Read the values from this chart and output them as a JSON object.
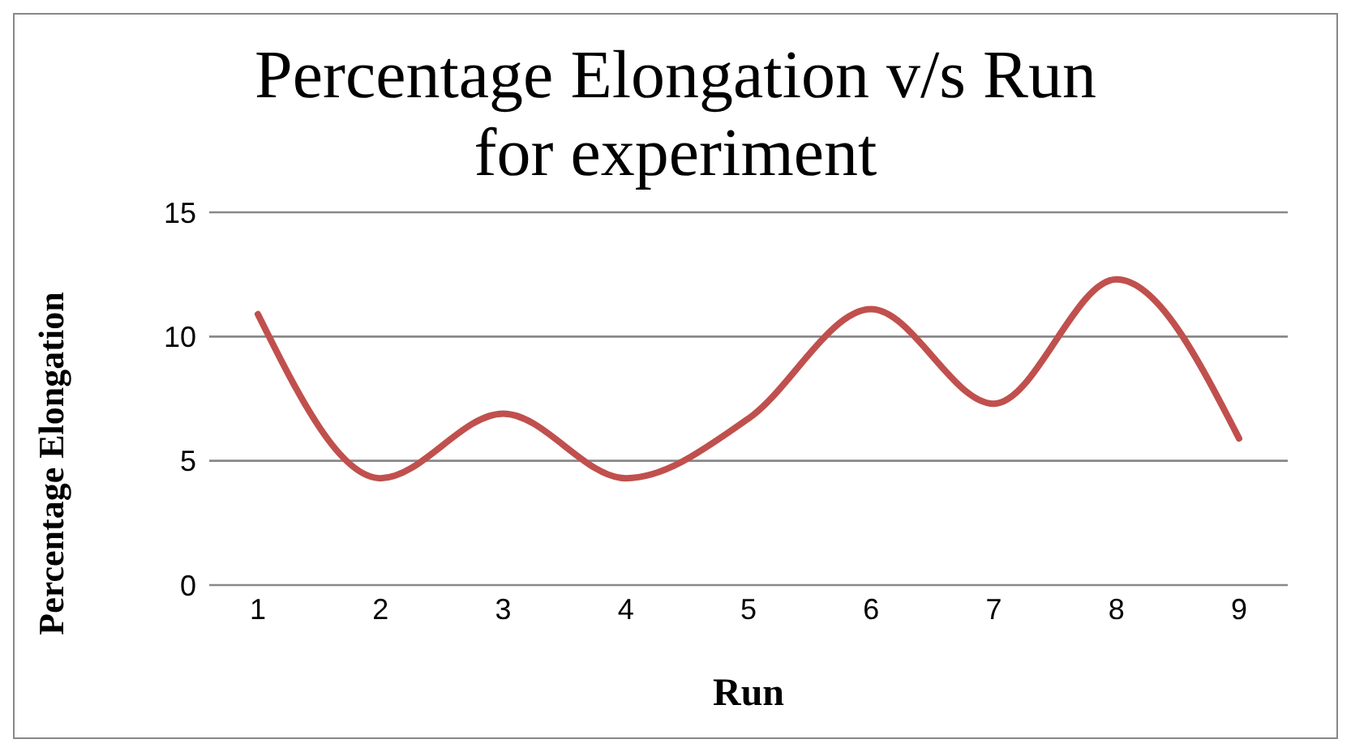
{
  "chart_data": {
    "type": "line",
    "title": "Percentage Elongation  v/s Run\nfor experiment",
    "xlabel": "Run",
    "ylabel": "Percentage Elongation",
    "categories": [
      "1",
      "2",
      "3",
      "4",
      "5",
      "6",
      "7",
      "8",
      "9"
    ],
    "series": [
      {
        "color": "#c0504d",
        "values": [
          10.9,
          4.3,
          6.9,
          4.3,
          6.7,
          11.1,
          7.3,
          12.3,
          5.9
        ]
      }
    ],
    "ylim": [
      0,
      15
    ],
    "yticks": [
      0,
      5,
      10,
      15
    ],
    "grid": "y",
    "marker": "none",
    "line_style": "solid"
  }
}
